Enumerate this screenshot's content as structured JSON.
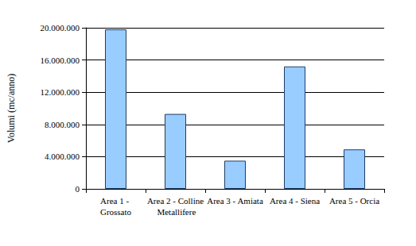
{
  "chart_data": {
    "type": "bar",
    "y_label": "Volumi (mc/anno)",
    "categories": [
      "Area 1 - Grossato",
      "Area 2 - Colline Metallifere",
      "Area 3 - Amiata",
      "Area 4 - Siena",
      "Area 5 - Orcia"
    ],
    "values": [
      19800000,
      9300000,
      3500000,
      15200000,
      4900000
    ],
    "color": "#99ccff",
    "ylim": [
      0,
      20000000
    ],
    "yticks": [
      {
        "value": 0,
        "label": "0"
      },
      {
        "value": 4000000,
        "label": "4.000.000"
      },
      {
        "value": 8000000,
        "label": "8.000.000"
      },
      {
        "value": 12000000,
        "label": "12.000.000"
      },
      {
        "value": 16000000,
        "label": "16.000.000"
      },
      {
        "value": 20000000,
        "label": "20.000.000"
      }
    ],
    "grid": true
  }
}
